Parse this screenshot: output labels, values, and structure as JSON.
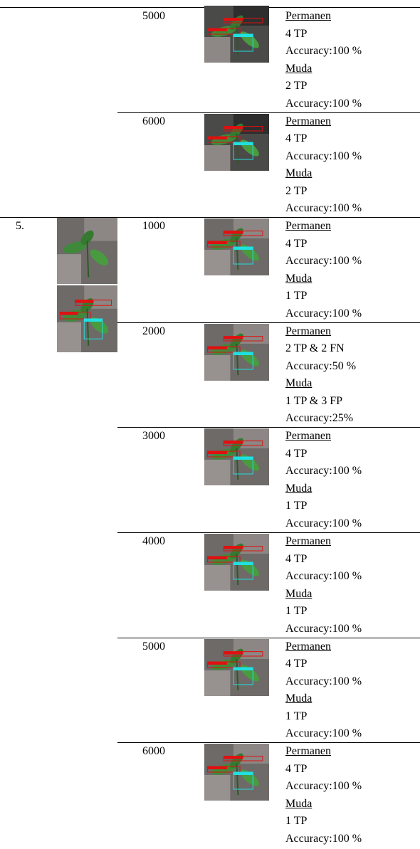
{
  "table": {
    "groups": [
      {
        "rows": [
          {
            "iteration": "5000",
            "results": [
              "Permanen",
              "4 TP",
              "Accuracy:100 %",
              "Muda",
              "2 TP",
              "Accuracy:100 %"
            ]
          },
          {
            "iteration": "6000",
            "results": [
              "Permanen",
              "4 TP",
              "Accuracy:100 %",
              "Muda",
              "2 TP",
              "Accuracy:100 %"
            ]
          }
        ]
      },
      {
        "no": "5.",
        "rows": [
          {
            "iteration": "1000",
            "results": [
              "Permanen",
              "4 TP",
              "Accuracy:100 %",
              "Muda",
              "1 TP",
              "Accuracy:100 %"
            ]
          },
          {
            "iteration": "2000",
            "results": [
              "Permanen",
              "2 TP & 2 FN",
              "Accuracy:50 %",
              "Muda",
              "1 TP & 3 FP",
              "Accuracy:25%"
            ]
          },
          {
            "iteration": "3000",
            "results": [
              "Permanen",
              "4 TP",
              "Accuracy:100 %",
              "Muda",
              "1 TP",
              "Accuracy:100 %"
            ]
          },
          {
            "iteration": "4000",
            "results": [
              "Permanen",
              "4 TP",
              "Accuracy:100 %",
              "Muda",
              "1 TP",
              "Accuracy:100 %"
            ]
          },
          {
            "iteration": "5000",
            "results": [
              "Permanen",
              "4 TP",
              "Accuracy:100 %",
              "Muda",
              "1 TP",
              "Accuracy:100 %"
            ]
          },
          {
            "iteration": "6000",
            "results": [
              "Permanen",
              "4 TP",
              "Accuracy:100 %",
              "Muda",
              "1 TP",
              "Accuracy:100 %"
            ]
          }
        ]
      }
    ]
  }
}
